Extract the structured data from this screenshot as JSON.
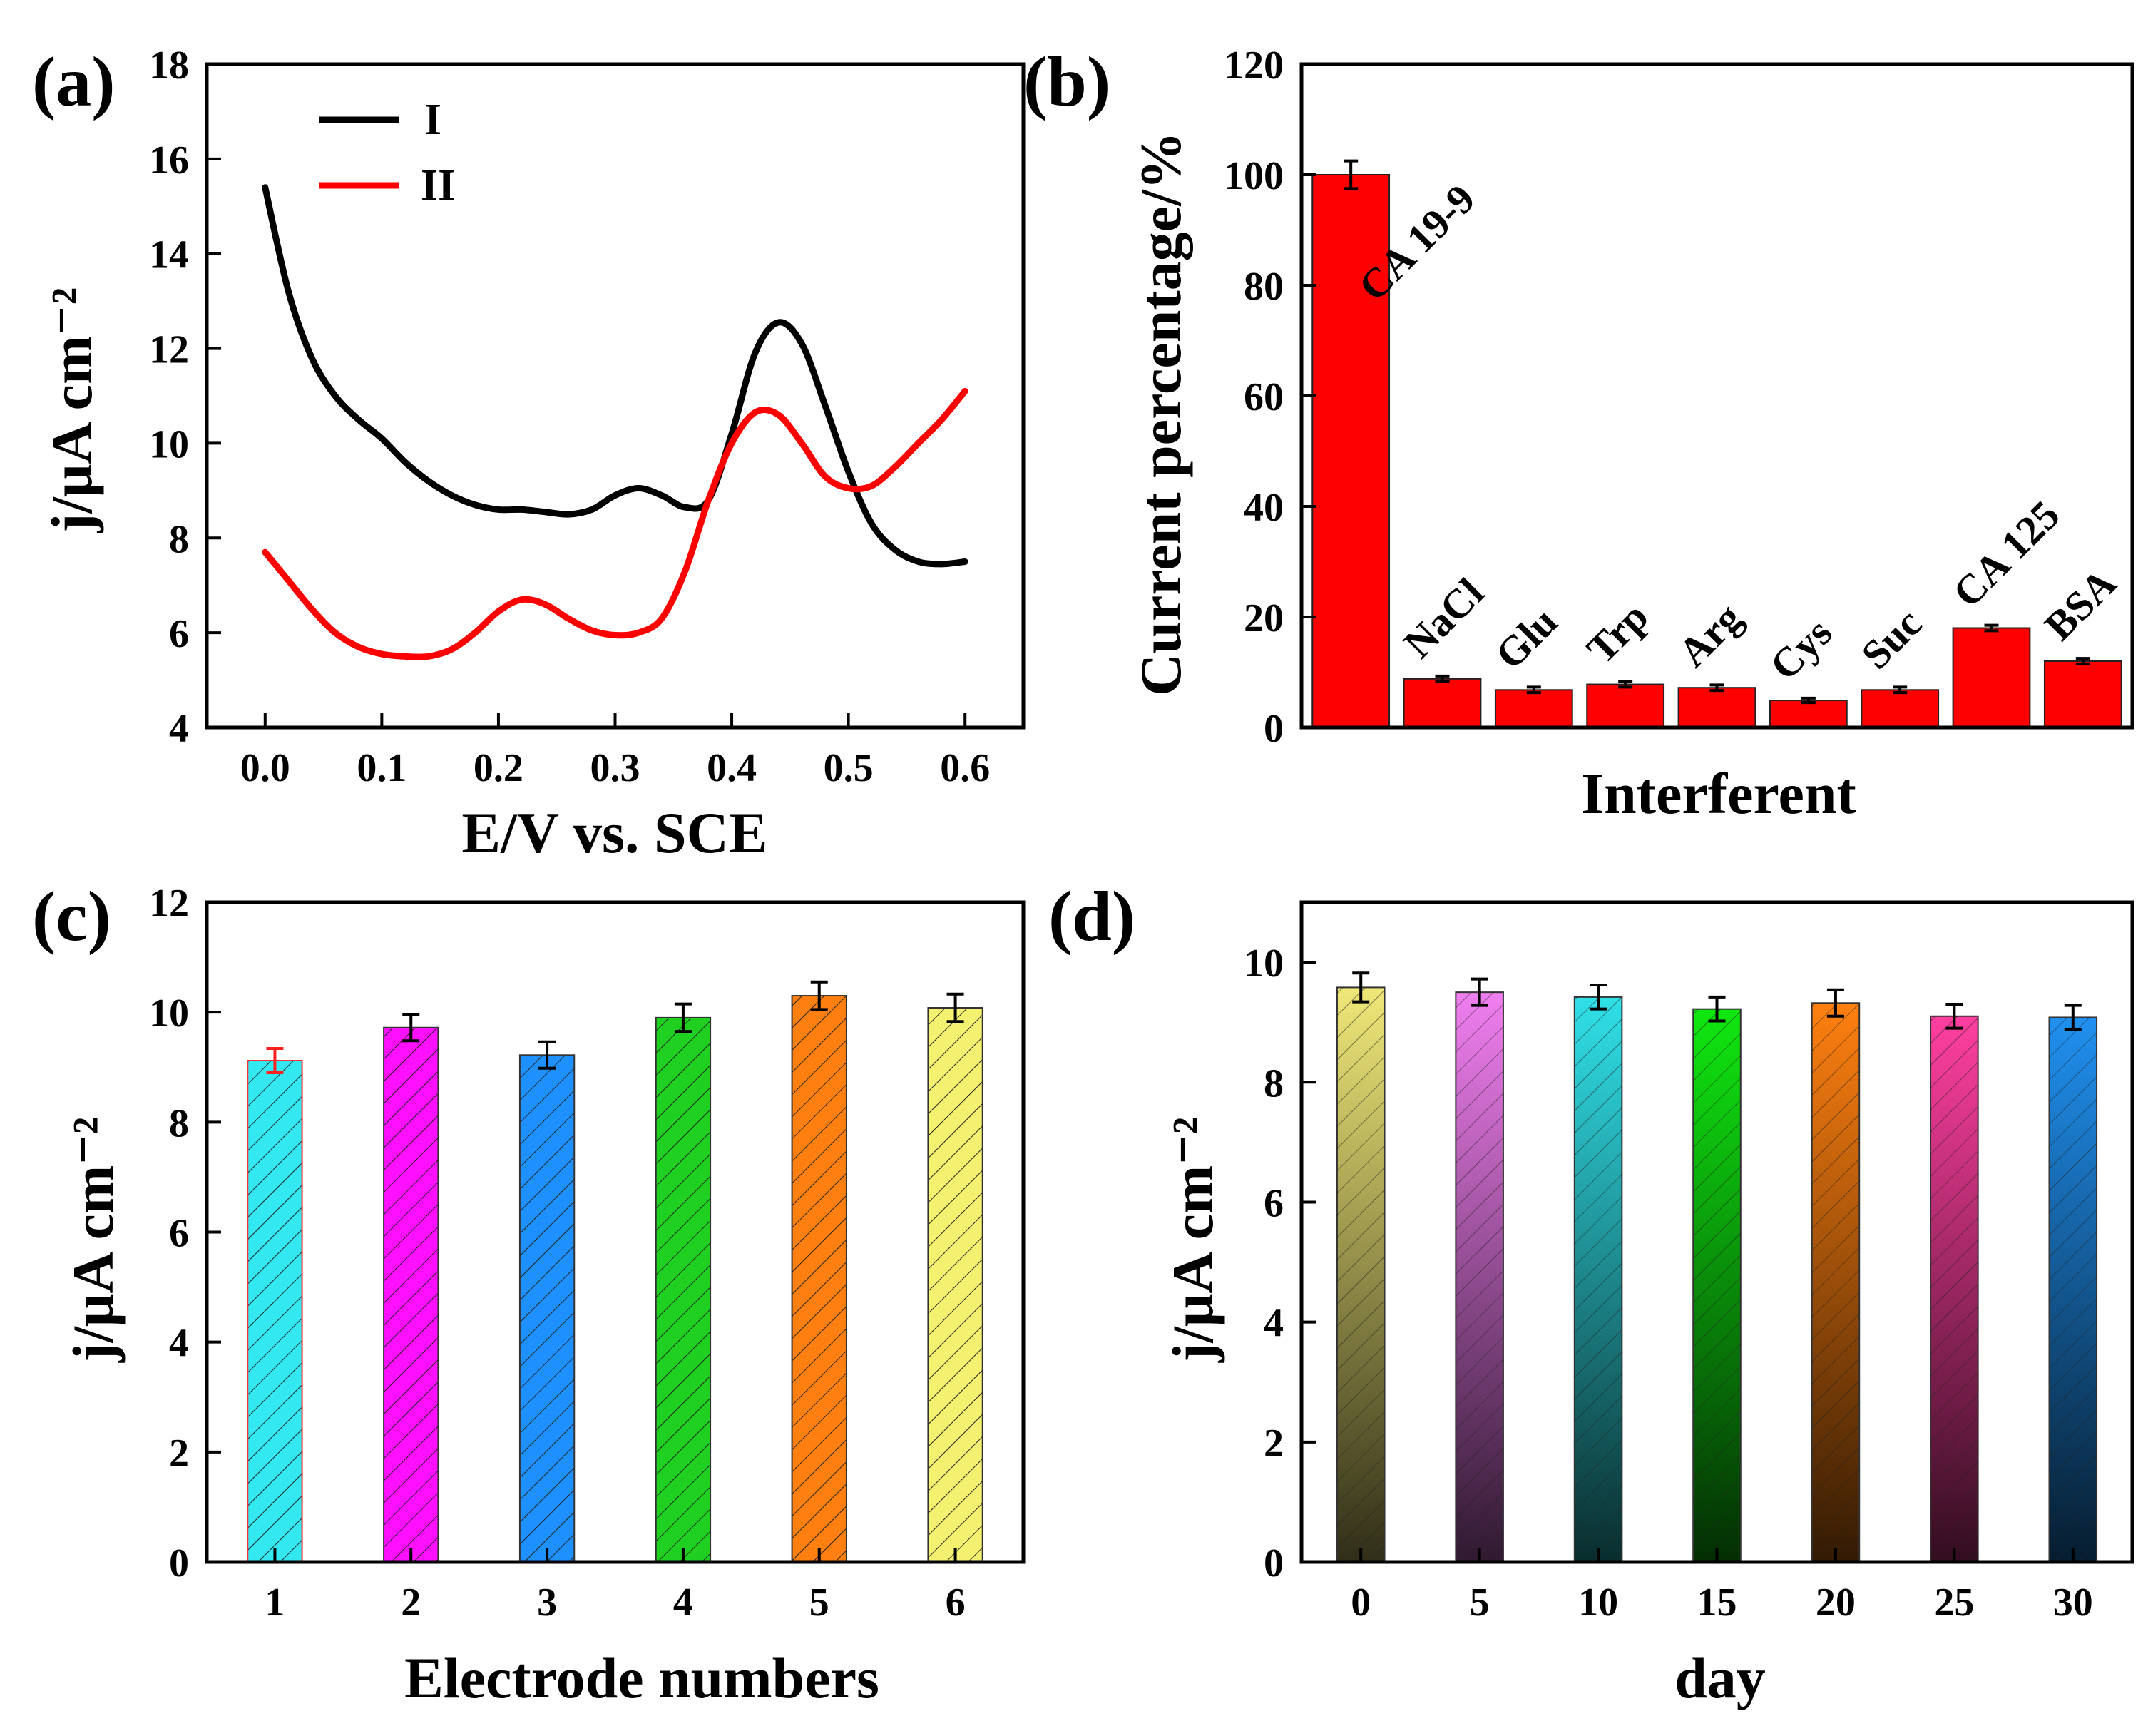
{
  "chart_data": [
    {
      "panel": "(a)",
      "type": "line",
      "xlabel": "E/V vs. SCE",
      "ylabel": "j/μA cm⁻²",
      "xlim": [
        -0.05,
        0.65
      ],
      "ylim": [
        4,
        18
      ],
      "xticks": [
        "0.0",
        "0.1",
        "0.2",
        "0.3",
        "0.4",
        "0.5",
        "0.6"
      ],
      "yticks": [
        "4",
        "6",
        "8",
        "10",
        "12",
        "14",
        "16",
        "18"
      ],
      "legend_position": "top-left",
      "series": [
        {
          "name": "I",
          "color": "#000000",
          "x": [
            0.0,
            0.02,
            0.04,
            0.06,
            0.08,
            0.1,
            0.12,
            0.14,
            0.16,
            0.18,
            0.2,
            0.22,
            0.24,
            0.26,
            0.28,
            0.3,
            0.32,
            0.34,
            0.36,
            0.38,
            0.4,
            0.42,
            0.44,
            0.46,
            0.48,
            0.5,
            0.52,
            0.54,
            0.56,
            0.58,
            0.6
          ],
          "y": [
            15.4,
            13.2,
            11.8,
            11.0,
            10.5,
            10.1,
            9.6,
            9.2,
            8.9,
            8.7,
            8.6,
            8.6,
            8.55,
            8.5,
            8.6,
            8.9,
            9.05,
            8.9,
            8.65,
            8.8,
            10.2,
            11.9,
            12.55,
            12.1,
            10.8,
            9.4,
            8.3,
            7.75,
            7.5,
            7.45,
            7.5
          ]
        },
        {
          "name": "II",
          "color": "#ff0000",
          "x": [
            0.0,
            0.02,
            0.04,
            0.06,
            0.08,
            0.1,
            0.12,
            0.14,
            0.16,
            0.18,
            0.2,
            0.22,
            0.24,
            0.26,
            0.28,
            0.3,
            0.32,
            0.34,
            0.36,
            0.38,
            0.4,
            0.42,
            0.44,
            0.46,
            0.48,
            0.5,
            0.52,
            0.54,
            0.56,
            0.58,
            0.6
          ],
          "y": [
            7.7,
            7.1,
            6.5,
            6.0,
            5.7,
            5.55,
            5.5,
            5.5,
            5.65,
            6.0,
            6.45,
            6.7,
            6.6,
            6.3,
            6.05,
            5.95,
            6.0,
            6.3,
            7.3,
            8.8,
            10.0,
            10.65,
            10.6,
            10.0,
            9.3,
            9.05,
            9.1,
            9.5,
            10.0,
            10.5,
            11.1
          ]
        }
      ]
    },
    {
      "panel": "(b)",
      "type": "bar",
      "xlabel": "Interferent",
      "ylabel": "Current percentage/%",
      "ylim": [
        0,
        120
      ],
      "yticks": [
        "0",
        "20",
        "40",
        "60",
        "80",
        "100",
        "120"
      ],
      "categories": [
        "CA 19-9",
        "NaCl",
        "Glu",
        "Trp",
        "Arg",
        "Cys",
        "Suc",
        "CA 125",
        "BSA"
      ],
      "values": [
        100,
        8.8,
        6.8,
        7.8,
        7.2,
        4.9,
        6.8,
        18.0,
        12.0
      ],
      "errors": [
        2.5,
        0.5,
        0.5,
        0.5,
        0.5,
        0.4,
        0.5,
        0.5,
        0.5
      ],
      "color": "#ff0000"
    },
    {
      "panel": "(c)",
      "type": "bar",
      "xlabel": "Electrode numbers",
      "ylabel": "j/μA cm⁻²",
      "ylim": [
        0,
        12
      ],
      "yticks": [
        "0",
        "2",
        "4",
        "6",
        "8",
        "10",
        "12"
      ],
      "categories": [
        "1",
        "2",
        "3",
        "4",
        "5",
        "6"
      ],
      "values": [
        9.12,
        9.72,
        9.22,
        9.9,
        10.3,
        10.08
      ],
      "errors": [
        0.22,
        0.24,
        0.24,
        0.25,
        0.25,
        0.25
      ],
      "colors": [
        "#33e8f0",
        "#ff10ff",
        "#1e90ff",
        "#20d020",
        "#ff8010",
        "#f4f070"
      ]
    },
    {
      "panel": "(d)",
      "type": "bar",
      "xlabel": "day",
      "ylabel": "j/μA cm⁻²",
      "ylim": [
        0,
        11
      ],
      "yticks": [
        "0",
        "2",
        "4",
        "6",
        "8",
        "10"
      ],
      "categories": [
        "0",
        "5",
        "10",
        "15",
        "20",
        "25",
        "30"
      ],
      "values": [
        9.58,
        9.5,
        9.42,
        9.22,
        9.32,
        9.1,
        9.08
      ],
      "errors": [
        0.24,
        0.22,
        0.2,
        0.2,
        0.22,
        0.2,
        0.2
      ],
      "colors": [
        "#f0e878",
        "#f07ef0",
        "#30e0e8",
        "#10e810",
        "#ff8010",
        "#ff3fa0",
        "#2090f0"
      ]
    }
  ]
}
